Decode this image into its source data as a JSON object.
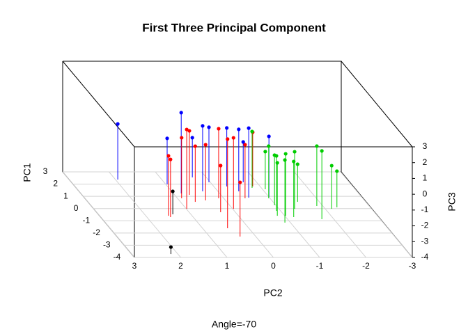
{
  "chart_data": {
    "type": "scatter3d",
    "title": "First Three Principal Component",
    "subtitle": "Angle=-70",
    "xlabel": "PC2",
    "ylabel": "PC1",
    "zlabel": "PC3",
    "xlim": [
      3,
      -3
    ],
    "ylim": [
      -4,
      3
    ],
    "zlim": [
      -4,
      3
    ],
    "xticks": [
      3,
      2,
      1,
      0,
      -1,
      -2,
      -3
    ],
    "yticks": [
      -4,
      -3,
      -2,
      -1,
      0,
      1,
      2,
      3
    ],
    "zticks": [
      -4,
      -3,
      -2,
      -1,
      0,
      1,
      2,
      3
    ],
    "grid": true,
    "series": [
      {
        "color": "#0000ff",
        "x": [
          1.95,
          0.97,
          0.83,
          0.3,
          0.33,
          0.03,
          -0.28,
          -0.45,
          -0.71,
          -0.55,
          -1.0
        ],
        "y": [
          2.37,
          1.98,
          1.24,
          2.55,
          1.41,
          2.15,
          1.81,
          1.41,
          2.15,
          0.89,
          0.95
        ],
        "z": [
          -0.48,
          -1.09,
          1.11,
          -1.49,
          0.14,
          -0.52,
          -0.3,
          -0.08,
          -1.45,
          0.4,
          -0.17
        ]
      },
      {
        "color": "#ff0000",
        "x": [
          1.51,
          1.49,
          0.91,
          0.99,
          0.68,
          0.68,
          0.43,
          0.11,
          0.32,
          0.46,
          -0.02,
          0.34,
          -0.46,
          -0.84
        ],
        "y": [
          -0.59,
          -0.7,
          0.84,
          -0.02,
          1.12,
          0.55,
          0.67,
          0.84,
          -0.3,
          -1.61,
          -0.02,
          -2.29,
          0.84,
          1.81
        ],
        "z": [
          -0.21,
          -0.35,
          -0.17,
          1.02,
          0.05,
          -0.48,
          -0.48,
          0.4,
          -1.05,
          1.64,
          0.49,
          -0.57,
          -0.61,
          -0.57
        ]
      },
      {
        "color": "#00cd00",
        "x": [
          -0.8,
          -1.06,
          -0.97,
          -0.97,
          -0.91,
          -0.84,
          -1.02,
          -0.88,
          -1.34,
          -1.17,
          -1.53,
          -1.87,
          -1.74,
          -2.14,
          -2.28
        ],
        "y": [
          1.69,
          1.58,
          0.84,
          0.27,
          -0.19,
          -0.59,
          -0.59,
          -1.15,
          -0.02,
          -0.7,
          0.55,
          0.21,
          -0.87,
          -0.02,
          0.1
        ],
        "z": [
          -0.43,
          -1.62,
          -0.7,
          -0.83,
          -0.52,
          -0.65,
          -0.08,
          -0.04,
          -0.39,
          -0.48,
          -1.62,
          -0.21,
          0.32,
          -1.27,
          -1.71
        ]
      },
      {
        "color": "#000000",
        "x": [
          1.39,
          2.15
        ],
        "y": [
          -0.47,
          -3.72
        ],
        "z": [
          -2.55,
          -3.56
        ]
      }
    ]
  }
}
